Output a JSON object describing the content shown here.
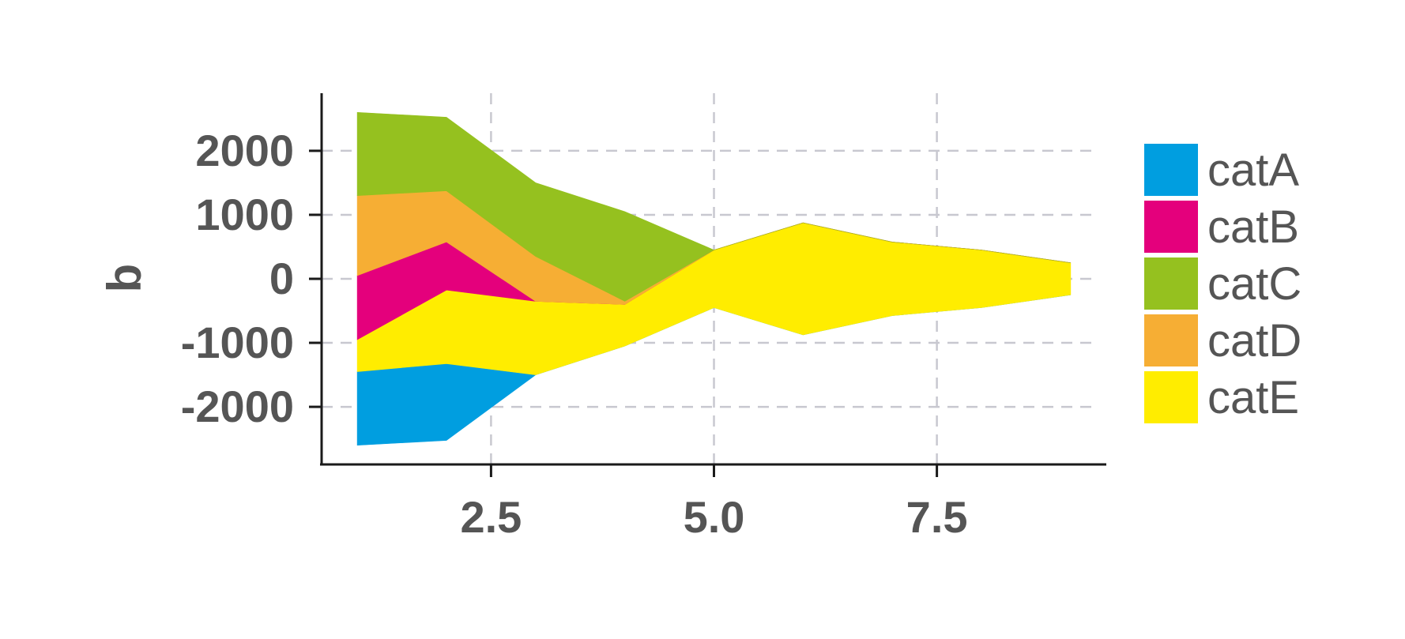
{
  "chart_data": {
    "type": "area",
    "subtype": "streamgraph",
    "title": "",
    "xlabel": "",
    "ylabel": "b",
    "x": [
      1,
      2,
      3,
      4,
      5,
      6,
      7,
      8,
      9
    ],
    "xlim": [
      0.6,
      9.4
    ],
    "ylim": [
      -2900,
      2900
    ],
    "x_ticks": [
      2.5,
      5.0,
      7.5
    ],
    "x_tick_labels": [
      "2.5",
      "5.0",
      "7.5"
    ],
    "y_ticks": [
      -2000,
      -1000,
      0,
      1000,
      2000
    ],
    "y_tick_labels": [
      "-2000",
      "-1000",
      "0",
      "1000",
      "2000"
    ],
    "grid": true,
    "legend_position": "right",
    "series": [
      {
        "name": "catA",
        "color": "#009ee0",
        "values": [
          1150,
          1200,
          0,
          0,
          0,
          0,
          0,
          0,
          0
        ]
      },
      {
        "name": "catB",
        "color": "#e4007c",
        "values": [
          1000,
          750,
          0,
          0,
          0,
          0,
          0,
          0,
          0
        ]
      },
      {
        "name": "catC",
        "color": "#95c11f",
        "values": [
          1300,
          1150,
          1150,
          1400,
          0,
          0,
          0,
          0,
          0
        ]
      },
      {
        "name": "catD",
        "color": "#f6ae34",
        "values": [
          1250,
          800,
          700,
          50,
          0,
          0,
          0,
          0,
          0
        ]
      },
      {
        "name": "catE",
        "color": "#ffed00",
        "values": [
          500,
          1150,
          1150,
          650,
          900,
          1750,
          1150,
          900,
          500
        ]
      }
    ],
    "stack_order": [
      "catA",
      "catE",
      "catB",
      "catD",
      "catC"
    ]
  }
}
